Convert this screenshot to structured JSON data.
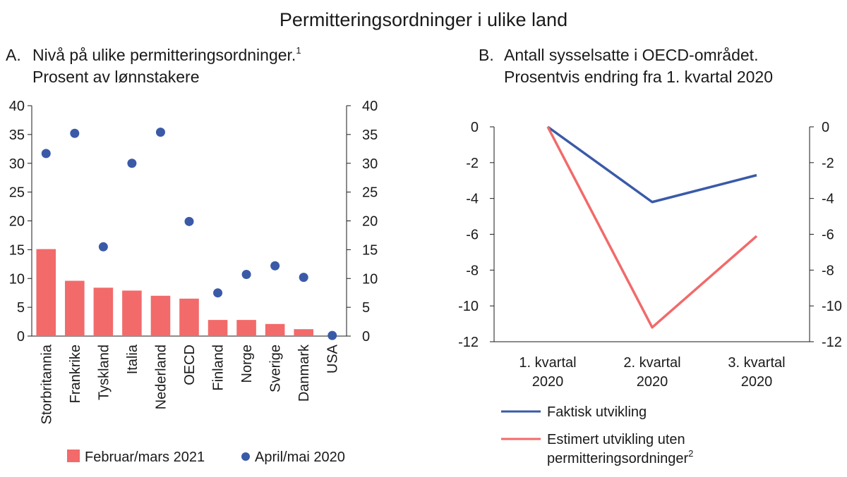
{
  "figure": {
    "title": "Permitteringsordninger i ulike land"
  },
  "chart_data": [
    {
      "type": "bar",
      "panel_letter": "A.",
      "title_line1": "Nivå på ulike permitteringsordninger.",
      "title_sup": "1",
      "title_line2": "Prosent av lønnstakere",
      "categories": [
        "Storbritannia",
        "Frankrike",
        "Tyskland",
        "Italia",
        "Nederland",
        "OECD",
        "Finland",
        "Norge",
        "Sverige",
        "Danmark",
        "USA"
      ],
      "series": [
        {
          "name": "Februar/mars 2021",
          "kind": "bar",
          "color": "#f26a6a",
          "values": [
            15.1,
            9.6,
            8.4,
            7.9,
            7.0,
            6.5,
            2.8,
            2.8,
            2.1,
            1.2,
            0
          ]
        },
        {
          "name": "April/mai 2020",
          "kind": "point",
          "color": "#3a5aa8",
          "values": [
            31.7,
            35.2,
            15.5,
            30.0,
            35.4,
            19.9,
            7.5,
            10.7,
            12.2,
            10.2,
            0.1
          ]
        }
      ],
      "ylim": [
        0,
        40
      ],
      "yticks": [
        "40",
        "35",
        "30",
        "25",
        "20",
        "15",
        "10",
        "5",
        "0"
      ],
      "legend_position": "bottom"
    },
    {
      "type": "line",
      "panel_letter": "B.",
      "title_line1": "Antall sysselsatte i OECD-området.",
      "title_line2": "Prosentvis endring fra 1. kvartal 2020",
      "x": [
        {
          "line1": "1. kvartal",
          "line2": "2020"
        },
        {
          "line1": "2. kvartal",
          "line2": "2020"
        },
        {
          "line1": "3. kvartal",
          "line2": "2020"
        }
      ],
      "series": [
        {
          "name": "Faktisk utvikling",
          "color": "#3a5aa8",
          "values": [
            0,
            -4.2,
            -2.7
          ]
        },
        {
          "name": "Estimert utvikling uten",
          "name_line2": "permitteringsordninger",
          "name_sup": "2",
          "color": "#f26a6a",
          "values": [
            0,
            -11.2,
            -6.1
          ]
        }
      ],
      "ylim": [
        -12,
        0
      ],
      "yticks": [
        "0",
        "-2",
        "-4",
        "-6",
        "-8",
        "-10",
        "-12"
      ],
      "legend_position": "bottom"
    }
  ]
}
